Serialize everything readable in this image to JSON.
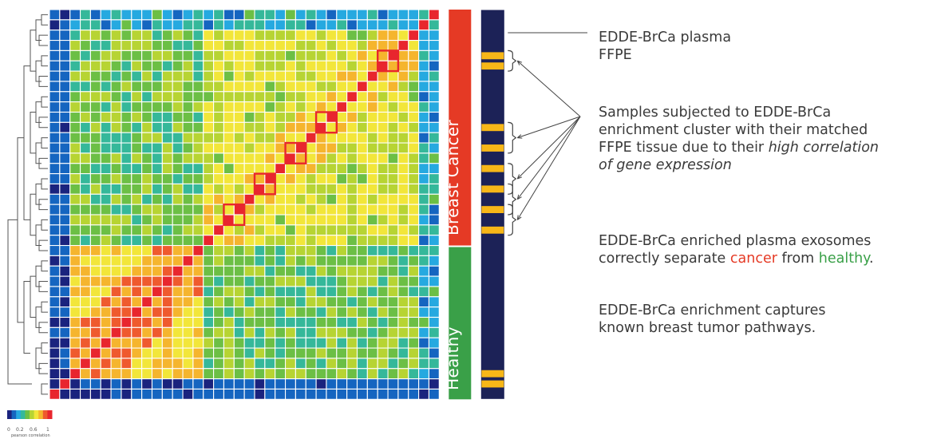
{
  "chart_data": {
    "type": "heatmap",
    "title": "",
    "n_samples": 38,
    "colorbar": {
      "label": "pearson correlation",
      "ticks": [
        "0",
        "0.2",
        "0.6",
        "1"
      ],
      "colors": [
        "#1a237e",
        "#1565c0",
        "#26a9e0",
        "#35b89a",
        "#6cbf45",
        "#b7d433",
        "#f2e63a",
        "#f5b52e",
        "#ef5a2e",
        "#e8262e"
      ]
    },
    "groups": [
      {
        "name": "Breast Cancer",
        "color": "#e53a25"
      },
      {
        "name": "Healthy",
        "color": "#3aa048"
      }
    ],
    "highlighted_blocks": [
      {
        "rows": [
          4,
          5
        ]
      },
      {
        "rows": [
          10,
          11
        ]
      },
      {
        "rows": [
          13,
          14
        ]
      },
      {
        "rows": [
          16,
          17
        ]
      },
      {
        "rows": [
          19,
          20
        ]
      }
    ],
    "sample_type_bar": {
      "colors": {
        "plasma": "#1c2257",
        "ffpe": "#f7b718"
      },
      "ffpe_rows": [
        4,
        5,
        11,
        13,
        15,
        17,
        19,
        21,
        35,
        36
      ]
    }
  },
  "annotations": {
    "legend_line1": "EDDE-BrCa plasma",
    "legend_line2": "FFPE",
    "samples_line1": "Samples subjected to EDDE-BrCa",
    "samples_line2": "enrichment cluster with their matched",
    "samples_line3_plain": "FFPE tissue due to their ",
    "samples_line3_italic": "high correlation",
    "samples_line4_italic": "of gene expression",
    "sep_line1": "EDDE-BrCa enriched plasma exosomes",
    "sep_pre": "correctly separate ",
    "sep_cancer": "cancer",
    "sep_mid": " from ",
    "sep_healthy": "healthy",
    "sep_end": ".",
    "path_line1": "EDDE-BrCa enrichment captures",
    "path_line2": "known breast tumor pathways."
  }
}
